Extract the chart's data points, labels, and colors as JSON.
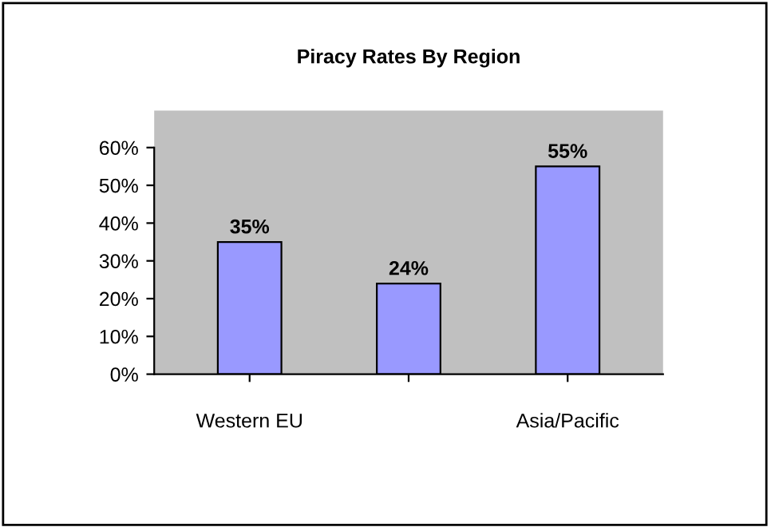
{
  "chart_data": {
    "type": "bar",
    "title": "Piracy Rates By Region",
    "categories": [
      "Western EU",
      null,
      "Asia/Pacific"
    ],
    "series": [
      {
        "color": "#9999ff",
        "values": [
          35,
          24,
          55
        ],
        "value_labels": [
          "35%",
          "24%",
          "55%"
        ]
      }
    ],
    "ylim": [
      0,
      60
    ],
    "yticks": [
      {
        "value": 0,
        "label": "0%"
      },
      {
        "value": 10,
        "label": "10%"
      },
      {
        "value": 20,
        "label": "20%"
      },
      {
        "value": 30,
        "label": "30%"
      },
      {
        "value": 40,
        "label": "40%"
      },
      {
        "value": 50,
        "label": "50%"
      },
      {
        "value": 60,
        "label": "60%"
      }
    ],
    "grid": false,
    "legend": false
  }
}
